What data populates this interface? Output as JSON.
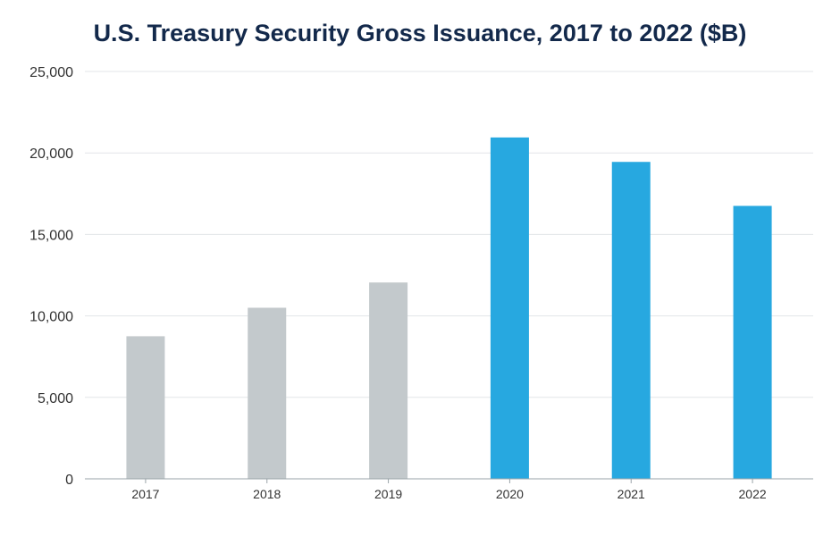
{
  "chart_data": {
    "type": "bar",
    "title": "U.S. Treasury Security Gross Issuance, 2017 to 2022 ($B)",
    "xlabel": "",
    "ylabel": "",
    "categories": [
      "2017",
      "2018",
      "2019",
      "2020",
      "2021",
      "2022"
    ],
    "values": [
      8750,
      10500,
      12050,
      20950,
      19450,
      16750
    ],
    "ylim": [
      0,
      25000
    ],
    "yticks": [
      0,
      5000,
      10000,
      15000,
      20000,
      25000
    ],
    "ytick_labels": [
      "0",
      "5,000",
      "10,000",
      "15,000",
      "20,000",
      "25,000"
    ],
    "grid": true,
    "legend": "none",
    "bar_colors": [
      "#c3c9cc",
      "#c3c9cc",
      "#c3c9cc",
      "#27a8e0",
      "#27a8e0",
      "#27a8e0"
    ],
    "gridline_color": "#e3e6e8",
    "axis_color": "#9aa3a8"
  }
}
